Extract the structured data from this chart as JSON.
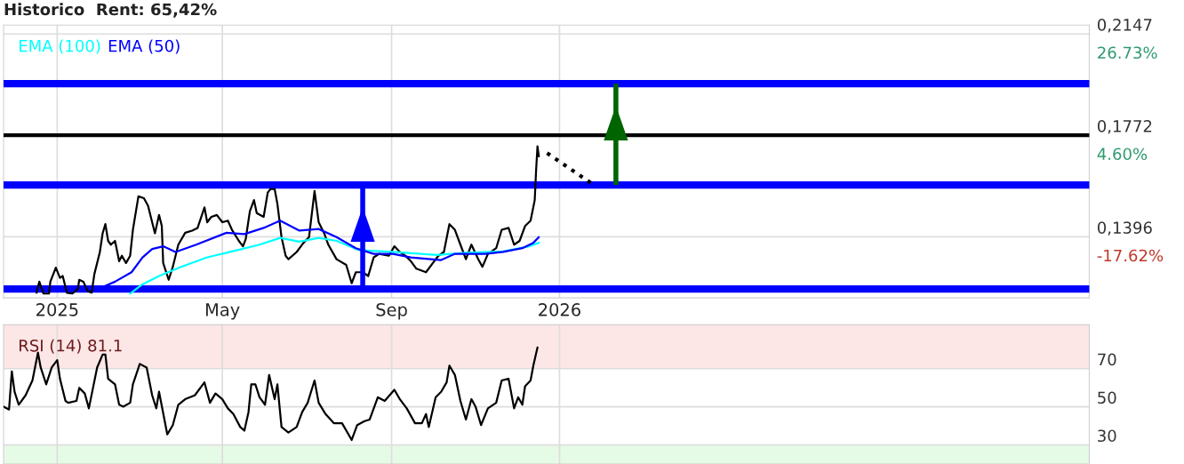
{
  "chart_data": [
    {
      "type": "line",
      "title": "Historico  Rent: 65,42%",
      "xlim": [
        "2024-11-23",
        "2027-01-21"
      ],
      "ylim": [
        0.117,
        0.218
      ],
      "xticks": [
        {
          "value": "2025-01-01",
          "label": "2025"
        },
        {
          "value": "2025-05-01",
          "label": "May"
        },
        {
          "value": "2025-09-01",
          "label": "Sep"
        },
        {
          "value": "2026-01-01",
          "label": "2026"
        }
      ],
      "yticks": [
        {
          "value": 0.2147,
          "label": "0,2147"
        },
        {
          "value": 0.1772,
          "label": "0,1772"
        },
        {
          "value": 0.1396,
          "label": "0,1396"
        }
      ],
      "annotations": [
        "26.73%",
        "4.60%",
        "-17.62%"
      ],
      "grid": true,
      "legend": "top left",
      "ref_lines": [
        {
          "axis": "y",
          "value": 0.1963,
          "color": "#0000ff"
        },
        {
          "axis": "y",
          "value": 0.1772,
          "color": "#000000"
        },
        {
          "axis": "y",
          "value": 0.1588,
          "color": "#0000ff"
        },
        {
          "axis": "y",
          "value": 0.1203,
          "color": "#0000ff"
        }
      ],
      "series": [
        {
          "color": "#000000",
          "x": [
            "2024-12-17",
            "2024-12-19",
            "2024-12-22",
            "2024-12-26",
            "2024-12-27",
            "2024-12-31",
            "2025-01-03",
            "2025-01-05",
            "2025-01-08",
            "2025-01-12",
            "2025-01-16",
            "2025-01-17",
            "2025-01-20",
            "2025-01-23",
            "2025-01-26",
            "2025-01-28",
            "2025-02-01",
            "2025-02-03",
            "2025-02-05",
            "2025-02-07",
            "2025-02-09",
            "2025-02-12",
            "2025-02-15",
            "2025-02-17",
            "2025-02-20",
            "2025-02-23",
            "2025-02-25",
            "2025-03-01",
            "2025-03-05",
            "2025-03-08",
            "2025-03-13",
            "2025-03-16",
            "2025-03-18",
            "2025-03-19",
            "2025-03-23",
            "2025-03-26",
            "2025-03-30",
            "2025-04-04",
            "2025-04-09",
            "2025-04-13",
            "2025-04-18",
            "2025-04-20",
            "2025-04-23",
            "2025-04-27",
            "2025-05-01",
            "2025-05-05",
            "2025-05-08",
            "2025-05-13",
            "2025-05-16",
            "2025-05-18",
            "2025-05-21",
            "2025-05-24",
            "2025-05-26",
            "2025-05-31",
            "2025-06-03",
            "2025-06-05",
            "2025-06-08",
            "2025-06-10",
            "2025-06-13",
            "2025-06-16",
            "2025-06-18",
            "2025-06-24",
            "2025-06-29",
            "2025-07-03",
            "2025-07-07",
            "2025-07-10",
            "2025-07-14",
            "2025-07-17",
            "2025-07-23",
            "2025-07-30",
            "2025-08-03",
            "2025-08-06",
            "2025-08-11",
            "2025-08-15",
            "2025-08-19",
            "2025-08-23",
            "2025-08-30",
            "2025-09-03",
            "2025-09-07",
            "2025-09-11",
            "2025-09-15",
            "2025-09-19",
            "2025-09-26",
            "2025-10-01",
            "2025-10-05",
            "2025-10-09",
            "2025-10-13",
            "2025-10-17",
            "2025-10-21",
            "2025-10-25",
            "2025-10-29",
            "2025-11-03",
            "2025-11-06",
            "2025-11-10",
            "2025-11-16",
            "2025-11-20",
            "2025-11-25",
            "2025-11-29",
            "2025-12-03",
            "2025-12-07",
            "2025-12-11",
            "2025-12-14",
            "2025-12-15",
            "2025-12-16",
            "2025-12-17"
          ],
          "values": [
            0.1189,
            0.123,
            0.1186,
            0.1186,
            0.123,
            0.1282,
            0.1244,
            0.1251,
            0.1189,
            0.1186,
            0.1203,
            0.1237,
            0.123,
            0.1196,
            0.1189,
            0.1258,
            0.134,
            0.1409,
            0.1443,
            0.1381,
            0.1367,
            0.1381,
            0.1306,
            0.1326,
            0.1299,
            0.1326,
            0.1422,
            0.1546,
            0.1539,
            0.1511,
            0.1409,
            0.1477,
            0.1436,
            0.1299,
            0.1237,
            0.1285,
            0.1367,
            0.1411,
            0.1419,
            0.1429,
            0.1505,
            0.145,
            0.147,
            0.1477,
            0.145,
            0.1456,
            0.1422,
            0.1381,
            0.1361,
            0.1388,
            0.1491,
            0.1532,
            0.1484,
            0.147,
            0.156,
            0.1573,
            0.1573,
            0.1518,
            0.1395,
            0.1326,
            0.1313,
            0.134,
            0.1374,
            0.1395,
            0.1566,
            0.145,
            0.1409,
            0.1367,
            0.1313,
            0.1292,
            0.1224,
            0.1265,
            0.1265,
            0.1251,
            0.132,
            0.1333,
            0.1326,
            0.1361,
            0.134,
            0.1326,
            0.1306,
            0.1278,
            0.1265,
            0.1299,
            0.1326,
            0.134,
            0.1443,
            0.1422,
            0.1367,
            0.1313,
            0.1367,
            0.1313,
            0.1285,
            0.1333,
            0.1354,
            0.1422,
            0.1429,
            0.1367,
            0.1381,
            0.1436,
            0.1456,
            0.1532,
            0.1642,
            0.1731,
            0.1694
          ]
        },
        {
          "name": "EMA (100)",
          "color": "#00ffff",
          "x": [
            "2025-02-23",
            "2025-03-03",
            "2025-03-16",
            "2025-04-01",
            "2025-04-20",
            "2025-05-12",
            "2025-05-28",
            "2025-06-12",
            "2025-06-26",
            "2025-07-10",
            "2025-07-23",
            "2025-08-08",
            "2025-09-02",
            "2025-10-04",
            "2025-10-25",
            "2025-11-21",
            "2025-12-10",
            "2025-12-17"
          ],
          "values": [
            0.1186,
            0.1217,
            0.1251,
            0.1285,
            0.132,
            0.1347,
            0.1367,
            0.1392,
            0.1378,
            0.1392,
            0.1381,
            0.1347,
            0.134,
            0.1329,
            0.1337,
            0.1342,
            0.1361,
            0.1374
          ]
        },
        {
          "name": "EMA (50)",
          "color": "#0000ff",
          "x": [
            "2025-01-31",
            "2025-02-12",
            "2025-02-24",
            "2025-03-04",
            "2025-03-11",
            "2025-03-19",
            "2025-03-28",
            "2025-04-12",
            "2025-05-04",
            "2025-05-17",
            "2025-05-31",
            "2025-06-12",
            "2025-06-26",
            "2025-07-10",
            "2025-07-23",
            "2025-08-06",
            "2025-08-19",
            "2025-09-02",
            "2025-09-15",
            "2025-10-07",
            "2025-10-17",
            "2025-11-08",
            "2025-11-21",
            "2025-12-05",
            "2025-12-13",
            "2025-12-17"
          ],
          "values": [
            0.1203,
            0.123,
            0.1265,
            0.132,
            0.1351,
            0.1361,
            0.134,
            0.1367,
            0.1411,
            0.1406,
            0.1429,
            0.1456,
            0.1419,
            0.1425,
            0.1395,
            0.1354,
            0.1333,
            0.1333,
            0.132,
            0.131,
            0.1333,
            0.1333,
            0.134,
            0.1354,
            0.1374,
            0.1395
          ]
        },
        {
          "color": "#000000",
          "line_style": "dotted",
          "x": [
            "2025-12-23",
            "2026-01-26"
          ],
          "values": [
            0.1706,
            0.1588
          ]
        },
        {
          "color": "#0000ff",
          "x": [
            "2025-08-11",
            "2025-08-11"
          ],
          "values": [
            0.1203,
            0.1588
          ]
        },
        {
          "color": "#006400",
          "x": [
            "2026-02-11",
            "2026-02-11"
          ],
          "values": [
            0.1588,
            0.1963
          ]
        }
      ]
    },
    {
      "type": "line",
      "xlim": [
        "2024-11-23",
        "2027-01-21"
      ],
      "ylim": [
        20,
        93
      ],
      "xticks": [
        "2025-01-01",
        "2025-05-01",
        "2025-09-01",
        "2026-01-01"
      ],
      "yticks": [
        70,
        50,
        30
      ],
      "tick_labels": "y",
      "grid": true,
      "legend": "top left",
      "bands": [
        {
          "axis": "y",
          "from": 70,
          "to": 93,
          "color": "#fde6e6"
        },
        {
          "axis": "y",
          "from": 20,
          "to": 30,
          "color": "#e6fbe6"
        }
      ],
      "series": [
        {
          "name": "RSI (14) 81.1",
          "color": "#000000",
          "x": [
            "2024-11-23",
            "2024-11-27",
            "2024-11-29",
            "2024-12-01",
            "2024-12-04",
            "2024-12-09",
            "2024-12-14",
            "2024-12-18",
            "2024-12-20",
            "2024-12-24",
            "2024-12-28",
            "2025-01-01",
            "2025-01-03",
            "2025-01-07",
            "2025-01-09",
            "2025-01-15",
            "2025-01-17",
            "2025-01-21",
            "2025-01-24",
            "2025-01-30",
            "2025-02-03",
            "2025-02-05",
            "2025-02-07",
            "2025-02-12",
            "2025-02-15",
            "2025-02-18",
            "2025-02-23",
            "2025-02-25",
            "2025-03-02",
            "2025-03-07",
            "2025-03-11",
            "2025-03-14",
            "2025-03-16",
            "2025-03-22",
            "2025-03-26",
            "2025-03-30",
            "2025-04-04",
            "2025-04-11",
            "2025-04-18",
            "2025-04-22",
            "2025-04-26",
            "2025-05-01",
            "2025-05-05",
            "2025-05-09",
            "2025-05-14",
            "2025-05-17",
            "2025-05-20",
            "2025-05-22",
            "2025-05-25",
            "2025-05-28",
            "2025-06-01",
            "2025-06-04",
            "2025-06-08",
            "2025-06-10",
            "2025-06-13",
            "2025-06-18",
            "2025-06-24",
            "2025-06-28",
            "2025-07-02",
            "2025-07-07",
            "2025-07-10",
            "2025-07-15",
            "2025-07-21",
            "2025-07-27",
            "2025-08-03",
            "2025-08-07",
            "2025-08-12",
            "2025-08-16",
            "2025-08-22",
            "2025-08-27",
            "2025-09-03",
            "2025-09-07",
            "2025-09-12",
            "2025-09-18",
            "2025-09-23",
            "2025-09-26",
            "2025-09-28",
            "2025-10-03",
            "2025-10-07",
            "2025-10-11",
            "2025-10-13",
            "2025-10-17",
            "2025-10-21",
            "2025-10-25",
            "2025-10-29",
            "2025-11-01",
            "2025-11-05",
            "2025-11-10",
            "2025-11-16",
            "2025-11-20",
            "2025-11-25",
            "2025-11-29",
            "2025-12-02",
            "2025-12-05",
            "2025-12-07",
            "2025-12-11",
            "2025-12-13",
            "2025-12-16"
          ],
          "values": [
            50.1,
            48.6,
            68.6,
            57.9,
            51.1,
            56.0,
            63.8,
            78.4,
            70.6,
            61.8,
            70.6,
            74.5,
            64.7,
            53.1,
            52.1,
            53.1,
            59.9,
            57.0,
            49.2,
            70.6,
            77.4,
            77.4,
            64.7,
            61.8,
            51.1,
            50.1,
            52.1,
            61.8,
            72.5,
            70.6,
            56.0,
            49.2,
            57.9,
            35.5,
            40.4,
            51.1,
            54.0,
            56.0,
            62.8,
            52.1,
            57.0,
            54.0,
            49.2,
            46.2,
            39.4,
            37.5,
            47.2,
            61.8,
            61.8,
            55.0,
            51.1,
            66.7,
            54.0,
            61.8,
            39.4,
            36.5,
            39.4,
            47.2,
            52.1,
            63.8,
            52.1,
            46.2,
            41.4,
            41.4,
            32.6,
            40.4,
            42.4,
            43.3,
            55.0,
            53.1,
            58.9,
            54.0,
            49.2,
            41.4,
            41.4,
            46.2,
            39.4,
            55.0,
            57.9,
            62.8,
            71.6,
            66.7,
            53.1,
            43.3,
            54.0,
            50.1,
            40.4,
            49.2,
            52.1,
            63.8,
            64.7,
            49.2,
            55.0,
            51.1,
            60.8,
            63.8,
            71.6,
            81.1
          ]
        }
      ]
    }
  ]
}
